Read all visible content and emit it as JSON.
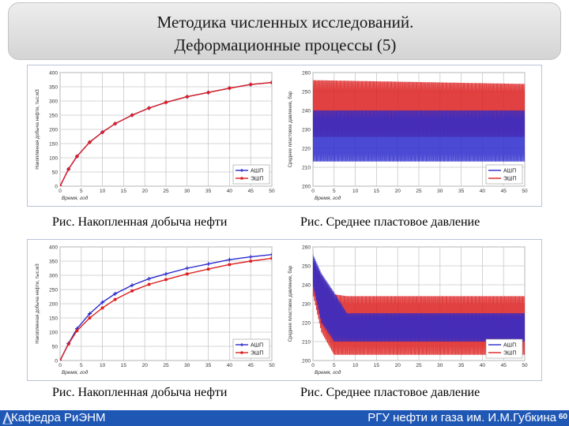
{
  "header": {
    "title_line1": "Методика численных исследований.",
    "title_line2": "Деформационные процессы (5)"
  },
  "captions": {
    "top_left": "Рис. Накопленная добыча нефти",
    "top_right": "Рис. Среднее пластовое давление",
    "bottom_left": "Рис. Накопленная добыча нефти",
    "bottom_right": "Рис. Среднее пластовое давление"
  },
  "footer": {
    "left_text": "Кафедра РиЭНМ",
    "right_text": "РГУ нефти и газа им. И.М.Губкина",
    "page_number": "60"
  },
  "colors": {
    "series_ash": "#2a2acc",
    "series_esh": "#dd2020",
    "grid": "#c8c8c8",
    "footer_bg": "#1f57b5"
  },
  "chart_data": [
    {
      "id": "top-left",
      "type": "line",
      "xlabel": "Время, год",
      "ylabel": "Накопленная добыча нефти, тыс.м3",
      "xlim": [
        0,
        50
      ],
      "ylim": [
        0,
        400
      ],
      "xticks": [
        0,
        5,
        10,
        15,
        20,
        25,
        30,
        35,
        40,
        45,
        50
      ],
      "yticks": [
        0,
        50,
        100,
        150,
        200,
        250,
        300,
        350,
        400
      ],
      "legend_position": "bottom-right",
      "series": [
        {
          "name": "АШП",
          "color": "#2a2acc",
          "marker": "plus",
          "x": [
            0,
            2,
            4,
            7,
            10,
            13,
            17,
            21,
            25,
            30,
            35,
            40,
            45,
            50
          ],
          "y": [
            0,
            60,
            105,
            155,
            190,
            220,
            250,
            275,
            295,
            315,
            330,
            345,
            358,
            365
          ]
        },
        {
          "name": "ЭШП",
          "color": "#dd2020",
          "marker": "circle",
          "x": [
            0,
            2,
            4,
            7,
            10,
            13,
            17,
            21,
            25,
            30,
            35,
            40,
            45,
            50
          ],
          "y": [
            0,
            60,
            105,
            155,
            190,
            220,
            250,
            275,
            295,
            315,
            330,
            345,
            358,
            365
          ]
        }
      ]
    },
    {
      "id": "top-right",
      "type": "line",
      "xlabel": "Время, год",
      "ylabel": "Среднее пластовое давление, бар",
      "xlim": [
        0,
        50
      ],
      "ylim": [
        200,
        260
      ],
      "xticks": [
        0,
        5,
        10,
        15,
        20,
        25,
        30,
        35,
        40,
        45,
        50
      ],
      "yticks": [
        200,
        210,
        220,
        230,
        240,
        250,
        260
      ],
      "legend_position": "bottom-right",
      "oscillation": true,
      "series": [
        {
          "name": "ЭШП",
          "color": "#dd2020",
          "x": [
            0,
            50
          ],
          "y_min": [
            226,
            226
          ],
          "y_max": [
            256,
            254
          ]
        },
        {
          "name": "АШП",
          "color": "#2a2acc",
          "x": [
            0,
            50
          ],
          "y_min": [
            213,
            213
          ],
          "y_max": [
            240,
            240
          ]
        }
      ]
    },
    {
      "id": "bottom-left",
      "type": "line",
      "xlabel": "Время, год",
      "ylabel": "Накопленная добыча нефти, тыс.м3",
      "xlim": [
        0,
        50
      ],
      "ylim": [
        0,
        400
      ],
      "xticks": [
        0,
        5,
        10,
        15,
        20,
        25,
        30,
        35,
        40,
        45,
        50
      ],
      "yticks": [
        0,
        50,
        100,
        150,
        200,
        250,
        300,
        350,
        400
      ],
      "legend_position": "bottom-right",
      "series": [
        {
          "name": "АШП",
          "color": "#2a2acc",
          "marker": "plus",
          "x": [
            0,
            2,
            4,
            7,
            10,
            13,
            17,
            21,
            25,
            30,
            35,
            40,
            45,
            50
          ],
          "y": [
            0,
            60,
            112,
            165,
            205,
            235,
            265,
            288,
            305,
            325,
            340,
            355,
            365,
            373
          ]
        },
        {
          "name": "ЭШП",
          "color": "#dd2020",
          "marker": "circle",
          "x": [
            0,
            2,
            4,
            7,
            10,
            13,
            17,
            21,
            25,
            30,
            35,
            40,
            45,
            50
          ],
          "y": [
            0,
            58,
            105,
            150,
            185,
            215,
            245,
            268,
            285,
            305,
            322,
            338,
            350,
            360
          ]
        }
      ]
    },
    {
      "id": "bottom-right",
      "type": "line",
      "xlabel": "Время, год",
      "ylabel": "Среднее пластовое давление, бар",
      "xlim": [
        0,
        50
      ],
      "ylim": [
        200,
        260
      ],
      "xticks": [
        0,
        5,
        10,
        15,
        20,
        25,
        30,
        35,
        40,
        45,
        50
      ],
      "yticks": [
        200,
        210,
        220,
        230,
        240,
        250,
        260
      ],
      "legend_position": "bottom-right",
      "oscillation": true,
      "series": [
        {
          "name": "ЭШП",
          "color": "#dd2020",
          "x": [
            0,
            2,
            5,
            8,
            50
          ],
          "y_min": [
            235,
            215,
            203,
            203,
            203
          ],
          "y_max": [
            253,
            245,
            235,
            234,
            234
          ]
        },
        {
          "name": "АШП",
          "color": "#2a2acc",
          "x": [
            0,
            2,
            5,
            8,
            50
          ],
          "y_min": [
            240,
            220,
            210,
            210,
            210
          ],
          "y_max": [
            256,
            246,
            236,
            225,
            225
          ]
        }
      ]
    }
  ]
}
